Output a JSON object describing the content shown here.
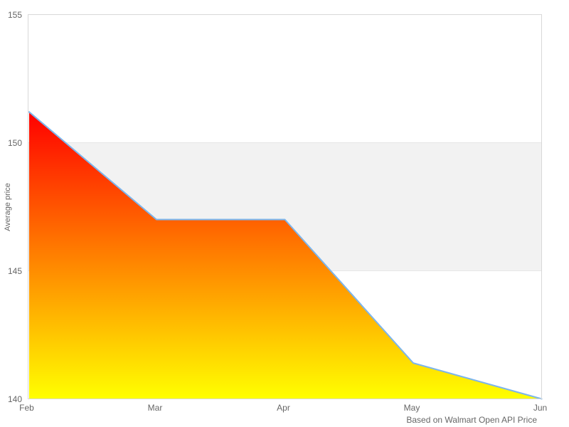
{
  "chart_data": {
    "type": "area",
    "categories": [
      "Feb",
      "Mar",
      "Apr",
      "May",
      "Jun"
    ],
    "values": [
      151.2,
      147.0,
      147.0,
      141.4,
      140.0
    ],
    "title": "",
    "xlabel": "",
    "ylabel": "Average price",
    "ylim": [
      140,
      155
    ],
    "yticks": [
      140,
      145,
      150,
      155
    ],
    "grid": true,
    "legend_position": "none",
    "alternate_band": {
      "from": 145,
      "to": 150
    },
    "credits": "Based on Walmart Open API Price"
  },
  "labels": {
    "y_title": "Average price",
    "credits": "Based on Walmart Open API Price"
  },
  "colors": {
    "line": "#7cb5ec",
    "fill_top": "#ff0000",
    "fill_bottom": "#ffff00",
    "band": "#f2f2f2",
    "gridline": "#e6e6e6",
    "border": "#d8d8d8",
    "label": "#666666",
    "background": "#ffffff"
  }
}
